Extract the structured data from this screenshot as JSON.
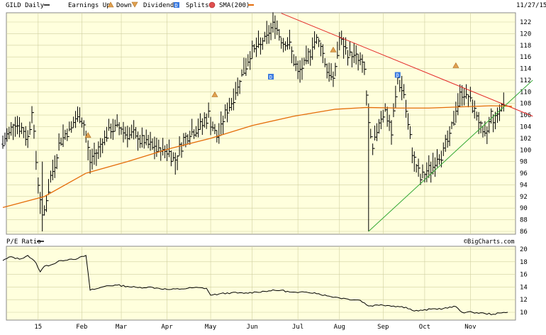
{
  "header": {
    "symbol": "GILD Daily",
    "date": "11/27/15",
    "legend": {
      "earnings_up": "Earnings Up",
      "down": "Down",
      "dividends": "Dividends",
      "dividend_glyph": "D",
      "splits": "Splits",
      "sma": "SMA(200)"
    }
  },
  "watermark": "©BigCharts.com",
  "colors": {
    "background": "#ffffdd",
    "grid": "#cfcfa0",
    "price_bars": "#000000",
    "sma": "#e46c0a",
    "resistance": "#e32626",
    "support": "#33a833",
    "earnings_marker": "#e0a050",
    "dividend_marker": "#3a7ae0",
    "split_marker": "#e05050"
  },
  "chart_data": [
    {
      "type": "line",
      "name": "GILD Daily price (OHLC bars)",
      "y_axis_side": "right",
      "ylim": [
        86,
        124
      ],
      "yticks": [
        86,
        88,
        90,
        92,
        94,
        96,
        98,
        100,
        102,
        104,
        106,
        108,
        110,
        112,
        114,
        116,
        118,
        120,
        122
      ],
      "x_index_range": [
        0,
        245
      ],
      "x_labels": [
        {
          "i": 17,
          "label": "15"
        },
        {
          "i": 38,
          "label": "Feb"
        },
        {
          "i": 57,
          "label": "Mar"
        },
        {
          "i": 79,
          "label": "Apr"
        },
        {
          "i": 100,
          "label": "May"
        },
        {
          "i": 120,
          "label": "Jun"
        },
        {
          "i": 142,
          "label": "Jul"
        },
        {
          "i": 162,
          "label": "Aug"
        },
        {
          "i": 183,
          "label": "Sep"
        },
        {
          "i": 203,
          "label": "Oct"
        },
        {
          "i": 225,
          "label": "Nov"
        }
      ],
      "price_path": [
        [
          0,
          101
        ],
        [
          6,
          105
        ],
        [
          12,
          102
        ],
        [
          14,
          107
        ],
        [
          16,
          98
        ],
        [
          19,
          88
        ],
        [
          23,
          95
        ],
        [
          28,
          102
        ],
        [
          33,
          104
        ],
        [
          37,
          106
        ],
        [
          39,
          104
        ],
        [
          42,
          98
        ],
        [
          46,
          100
        ],
        [
          50,
          103
        ],
        [
          55,
          104
        ],
        [
          60,
          103
        ],
        [
          65,
          102
        ],
        [
          70,
          101
        ],
        [
          75,
          100
        ],
        [
          80,
          100
        ],
        [
          83,
          98
        ],
        [
          86,
          101
        ],
        [
          90,
          103
        ],
        [
          95,
          104
        ],
        [
          99,
          106
        ],
        [
          103,
          102
        ],
        [
          107,
          106
        ],
        [
          112,
          110
        ],
        [
          116,
          114
        ],
        [
          120,
          117
        ],
        [
          124,
          118
        ],
        [
          128,
          120
        ],
        [
          131,
          122
        ],
        [
          134,
          119
        ],
        [
          138,
          118
        ],
        [
          142,
          113
        ],
        [
          146,
          115
        ],
        [
          150,
          119
        ],
        [
          153,
          118
        ],
        [
          156,
          114
        ],
        [
          159,
          112
        ],
        [
          162,
          119
        ],
        [
          165,
          117
        ],
        [
          170,
          116
        ],
        [
          174,
          114
        ],
        [
          176,
          104
        ],
        [
          178,
          100
        ],
        [
          181,
          105
        ],
        [
          184,
          107
        ],
        [
          187,
          103
        ],
        [
          190,
          112
        ],
        [
          193,
          110
        ],
        [
          195,
          104
        ],
        [
          198,
          98
        ],
        [
          201,
          95
        ],
        [
          204,
          96
        ],
        [
          208,
          98
        ],
        [
          212,
          100
        ],
        [
          215,
          102
        ],
        [
          218,
          107
        ],
        [
          221,
          110
        ],
        [
          224,
          109
        ],
        [
          227,
          107
        ],
        [
          229,
          105
        ],
        [
          231,
          102
        ],
        [
          233,
          103
        ],
        [
          235,
          106
        ],
        [
          237,
          105
        ],
        [
          239,
          107
        ],
        [
          241,
          108
        ]
      ],
      "low_spikes": [
        {
          "i": 19,
          "low": 86,
          "high": 98
        },
        {
          "i": 176,
          "low": 86,
          "high": 108
        }
      ],
      "sma_200": [
        [
          0,
          90.1
        ],
        [
          20,
          92.0
        ],
        [
          40,
          96.0
        ],
        [
          60,
          98.0
        ],
        [
          80,
          100.2
        ],
        [
          100,
          102.0
        ],
        [
          120,
          104.2
        ],
        [
          140,
          105.8
        ],
        [
          160,
          107.0
        ],
        [
          175,
          107.3
        ],
        [
          190,
          107.2
        ],
        [
          205,
          107.2
        ],
        [
          220,
          107.4
        ],
        [
          235,
          107.6
        ],
        [
          245,
          107.5
        ]
      ],
      "trendlines": [
        {
          "name": "resistance",
          "from": [
            134,
            123.5
          ],
          "to": [
            255,
            105.8
          ]
        },
        {
          "name": "support",
          "from": [
            176,
            86
          ],
          "to": [
            255,
            112
          ]
        }
      ],
      "markers": [
        {
          "type": "earnings",
          "i": 41,
          "y": 102.5
        },
        {
          "type": "earnings",
          "i": 102,
          "y": 109.5
        },
        {
          "type": "earnings",
          "i": 159,
          "y": 117.2
        },
        {
          "type": "earnings",
          "i": 218,
          "y": 114.5
        },
        {
          "type": "dividend",
          "i": 129,
          "y": 112.6
        },
        {
          "type": "dividend",
          "i": 190,
          "y": 112.9
        }
      ]
    },
    {
      "type": "line",
      "name": "P/E Ratio",
      "title": "P/E Ratio",
      "y_axis_side": "right",
      "ylim": [
        9,
        20
      ],
      "yticks": [
        10,
        12,
        14,
        16,
        18,
        20
      ],
      "x_index_range": [
        0,
        245
      ],
      "values": [
        [
          0,
          18.2
        ],
        [
          4,
          18.8
        ],
        [
          8,
          18.4
        ],
        [
          12,
          19.0
        ],
        [
          16,
          17.8
        ],
        [
          18,
          16.4
        ],
        [
          20,
          17.3
        ],
        [
          24,
          17.6
        ],
        [
          28,
          18.2
        ],
        [
          32,
          18.4
        ],
        [
          36,
          18.5
        ],
        [
          40,
          19.0
        ],
        [
          42,
          13.5
        ],
        [
          46,
          13.8
        ],
        [
          50,
          14.2
        ],
        [
          55,
          14.3
        ],
        [
          60,
          14.1
        ],
        [
          65,
          13.9
        ],
        [
          70,
          14.0
        ],
        [
          75,
          13.8
        ],
        [
          80,
          13.6
        ],
        [
          86,
          13.7
        ],
        [
          92,
          13.9
        ],
        [
          98,
          13.8
        ],
        [
          100,
          12.7
        ],
        [
          104,
          12.9
        ],
        [
          110,
          13.1
        ],
        [
          116,
          13.0
        ],
        [
          122,
          13.2
        ],
        [
          128,
          13.4
        ],
        [
          134,
          13.5
        ],
        [
          138,
          13.2
        ],
        [
          142,
          13.1
        ],
        [
          146,
          13.2
        ],
        [
          150,
          13.1
        ],
        [
          156,
          12.6
        ],
        [
          160,
          12.4
        ],
        [
          166,
          12.1
        ],
        [
          172,
          11.9
        ],
        [
          176,
          11.0
        ],
        [
          182,
          11.2
        ],
        [
          188,
          11.0
        ],
        [
          194,
          10.8
        ],
        [
          198,
          10.2
        ],
        [
          202,
          10.3
        ],
        [
          206,
          10.5
        ],
        [
          212,
          10.6
        ],
        [
          218,
          10.9
        ],
        [
          221,
          10.0
        ],
        [
          226,
          10.0
        ],
        [
          232,
          9.8
        ],
        [
          236,
          9.7
        ],
        [
          240,
          9.9
        ],
        [
          243,
          10.0
        ]
      ]
    }
  ]
}
